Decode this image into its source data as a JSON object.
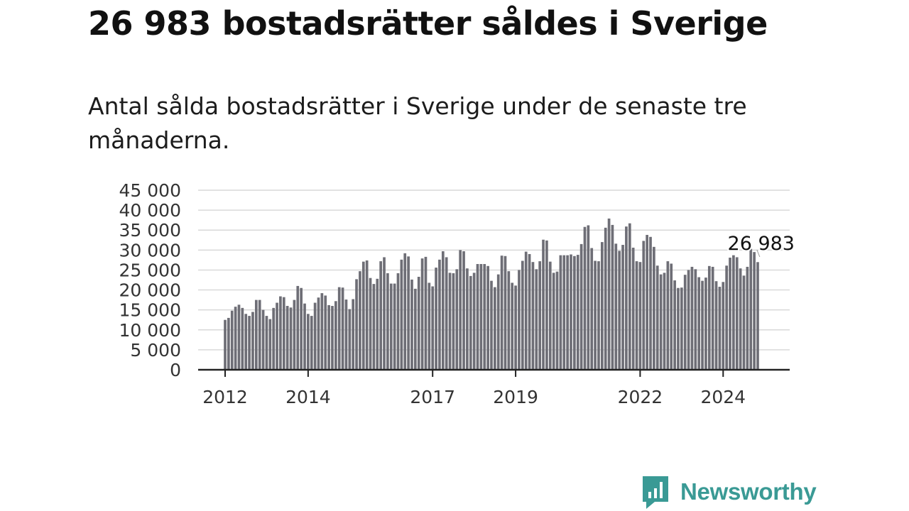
{
  "header": {
    "title": "26 983 bostadsrätter såldes i Sverige",
    "subtitle": "Antal sålda bostadsrätter i Sverige under de senaste tre månaderna."
  },
  "brand": {
    "name": "Newsworthy",
    "color": "#3a9a95",
    "icon": "speech-bubble-bar-chart-icon"
  },
  "chart_data": {
    "type": "bar",
    "xlabel": "",
    "ylabel": "",
    "ylim": [
      0,
      45000
    ],
    "yticks": [
      0,
      5000,
      10000,
      15000,
      20000,
      25000,
      30000,
      35000,
      40000,
      45000
    ],
    "ytick_labels": [
      "0",
      "5 000",
      "10 000",
      "15 000",
      "20 000",
      "25 000",
      "30 000",
      "35 000",
      "40 000",
      "45 000"
    ],
    "xticks": [
      {
        "label": "2012",
        "index": 0
      },
      {
        "label": "2014",
        "index": 24
      },
      {
        "label": "2017",
        "index": 60
      },
      {
        "label": "2019",
        "index": 84
      },
      {
        "label": "2022",
        "index": 120
      },
      {
        "label": "2024",
        "index": 144
      }
    ],
    "grid": true,
    "bar_color": "#6e6e76",
    "highlight_color": "#2a9d94",
    "highlight_index": 155,
    "annotation": {
      "text": "26 983",
      "index": 155
    },
    "values": [
      12500,
      13000,
      14800,
      15800,
      16300,
      15500,
      14000,
      13500,
      14500,
      17500,
      17500,
      15000,
      13500,
      12700,
      15500,
      16800,
      18400,
      18200,
      16000,
      15600,
      17500,
      21000,
      20500,
      16600,
      14000,
      13500,
      16800,
      18100,
      19200,
      18600,
      16200,
      16000,
      17200,
      20700,
      20600,
      17600,
      15200,
      17700,
      22700,
      24700,
      27100,
      27400,
      23000,
      21500,
      22800,
      27200,
      28200,
      24200,
      21600,
      21600,
      24200,
      27600,
      29200,
      28400,
      22600,
      20300,
      23300,
      27900,
      28300,
      21800,
      20900,
      25600,
      27600,
      29700,
      28200,
      24300,
      24200,
      25200,
      30000,
      29700,
      25400,
      23500,
      24300,
      26500,
      26500,
      26500,
      26000,
      22300,
      20700,
      23900,
      28600,
      28500,
      24700,
      21800,
      21100,
      25000,
      27300,
      29600,
      29000,
      27000,
      25200,
      27200,
      32600,
      32400,
      27100,
      24300,
      24600,
      28700,
      28700,
      28700,
      28900,
      28500,
      28800,
      31500,
      35800,
      36200,
      30500,
      27300,
      27200,
      32000,
      35600,
      37900,
      36300,
      31600,
      29800,
      31300,
      35900,
      36700,
      30600,
      27200,
      27000,
      32300,
      33800,
      33300,
      30800,
      26100,
      23900,
      24300,
      27200,
      26600,
      22400,
      20500,
      20600,
      23800,
      25000,
      25800,
      25200,
      23200,
      22300,
      23100,
      26000,
      25800,
      22200,
      20800,
      22000,
      26100,
      28100,
      28700,
      28200,
      25400,
      23600,
      25800,
      30300,
      29500,
      26983
    ]
  }
}
